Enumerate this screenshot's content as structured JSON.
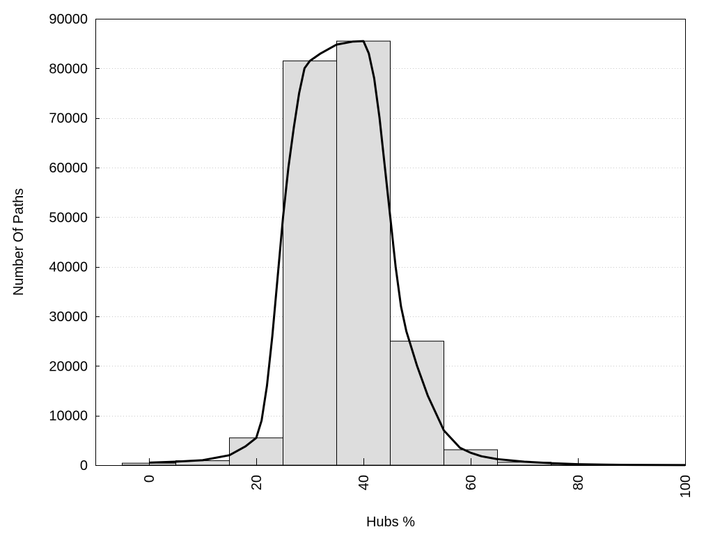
{
  "chart_data": {
    "type": "bar",
    "xlabel": "Hubs %",
    "ylabel": "Number Of Paths",
    "xlim": [
      -10,
      100
    ],
    "ylim": [
      0,
      90000
    ],
    "grid": true,
    "x_ticks": [
      0,
      20,
      40,
      60,
      80,
      100
    ],
    "y_ticks": [
      0,
      10000,
      20000,
      30000,
      40000,
      50000,
      60000,
      70000,
      80000,
      90000
    ],
    "bins": [
      {
        "from": -5,
        "to": 5,
        "value": 400
      },
      {
        "from": 5,
        "to": 15,
        "value": 900
      },
      {
        "from": 15,
        "to": 25,
        "value": 5500
      },
      {
        "from": 25,
        "to": 35,
        "value": 81500
      },
      {
        "from": 35,
        "to": 45,
        "value": 85500
      },
      {
        "from": 45,
        "to": 55,
        "value": 25000
      },
      {
        "from": 55,
        "to": 65,
        "value": 3100
      },
      {
        "from": 65,
        "to": 75,
        "value": 600
      },
      {
        "from": 75,
        "to": 85,
        "value": 200
      },
      {
        "from": 85,
        "to": 95,
        "value": 50
      },
      {
        "from": 95,
        "to": 105,
        "value": 20
      }
    ],
    "curve": {
      "x": [
        0,
        5,
        10,
        15,
        18,
        20,
        21,
        22,
        23,
        24,
        25,
        26,
        27,
        28,
        29,
        30,
        32,
        35,
        38,
        40,
        41,
        42,
        43,
        44,
        45,
        46,
        47,
        48,
        50,
        52,
        55,
        58,
        60,
        62,
        65,
        70,
        75,
        80,
        85,
        90,
        95,
        100
      ],
      "y": [
        500,
        700,
        1000,
        2000,
        3800,
        5500,
        9000,
        16000,
        26000,
        38000,
        50000,
        60000,
        68000,
        75000,
        80000,
        81500,
        83000,
        84800,
        85400,
        85500,
        83000,
        78000,
        70000,
        60000,
        50000,
        40000,
        32000,
        27000,
        20000,
        14000,
        7000,
        3500,
        2500,
        1800,
        1200,
        700,
        400,
        200,
        100,
        60,
        30,
        20
      ]
    }
  }
}
